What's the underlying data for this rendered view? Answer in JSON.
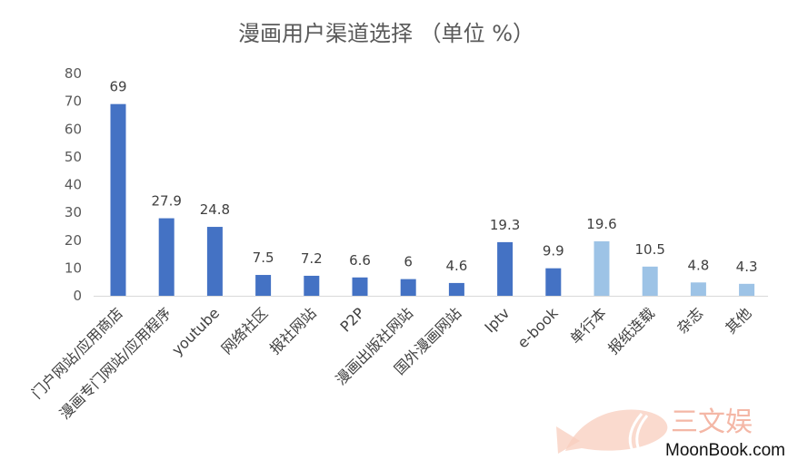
{
  "chart_data": {
    "type": "bar",
    "title": "漫画用户渠道选择 （单位 %）",
    "categories": [
      "门户网站/应用商店",
      "漫画专门网站/应用程序",
      "youtube",
      "网络社区",
      "报社网站",
      "P2P",
      "漫画出版社网站",
      "国外漫画网站",
      "Iptv",
      "e-book",
      "单行本",
      "报纸连载",
      "杂志",
      "其他"
    ],
    "values": [
      69,
      27.9,
      24.8,
      7.5,
      7.2,
      6.6,
      6,
      4.6,
      19.3,
      9.9,
      19.6,
      10.5,
      4.8,
      4.3
    ],
    "value_labels": [
      "69",
      "27.9",
      "24.8",
      "7.5",
      "7.2",
      "6.6",
      "6",
      "4.6",
      "19.3",
      "9.9",
      "19.6",
      "10.5",
      "4.8",
      "4.3"
    ],
    "bar_colors": [
      "#4472c4",
      "#4472c4",
      "#4472c4",
      "#4472c4",
      "#4472c4",
      "#4472c4",
      "#4472c4",
      "#4472c4",
      "#4472c4",
      "#4472c4",
      "#9dc3e6",
      "#9dc3e6",
      "#9dc3e6",
      "#9dc3e6"
    ],
    "ylim": [
      0,
      80
    ],
    "yticks": [
      "0",
      "10",
      "20",
      "30",
      "40",
      "50",
      "60",
      "70",
      "80"
    ],
    "grid": false,
    "xlabel": "",
    "ylabel": ""
  },
  "watermark": {
    "text": "三文娱",
    "site": "MoonBook.com",
    "color": "#f4b7a6"
  }
}
